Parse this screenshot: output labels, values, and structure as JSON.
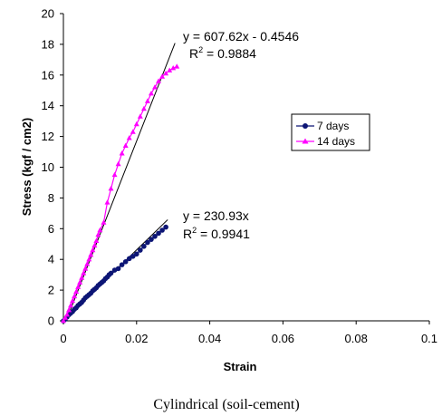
{
  "chart_data": {
    "type": "scatter",
    "xlabel": "Strain",
    "ylabel": "Stress (kgf / cm2)",
    "xlim": [
      0,
      0.1
    ],
    "ylim": [
      0,
      20
    ],
    "x_ticks": [
      "0",
      "0.02",
      "0.04",
      "0.06",
      "0.08",
      "0.1"
    ],
    "y_ticks": [
      "0",
      "2",
      "4",
      "6",
      "8",
      "10",
      "12",
      "14",
      "16",
      "18",
      "20"
    ],
    "grid": false,
    "legend_position": "right",
    "caption": "Cylindrical (soil-cement)",
    "series": [
      {
        "name": "7 days",
        "color": "#0c1575",
        "marker": "circle",
        "x": [
          0.0,
          0.0005,
          0.001,
          0.0015,
          0.002,
          0.0025,
          0.003,
          0.0035,
          0.004,
          0.0045,
          0.005,
          0.0055,
          0.006,
          0.0065,
          0.007,
          0.0075,
          0.008,
          0.0085,
          0.009,
          0.0095,
          0.01,
          0.0105,
          0.011,
          0.0115,
          0.012,
          0.0125,
          0.013,
          0.014,
          0.015,
          0.016,
          0.017,
          0.018,
          0.019,
          0.02,
          0.021,
          0.022,
          0.023,
          0.024,
          0.025,
          0.026,
          0.027,
          0.028
        ],
        "y": [
          0.0,
          0.1,
          0.25,
          0.4,
          0.5,
          0.6,
          0.75,
          0.85,
          1.0,
          1.1,
          1.2,
          1.35,
          1.5,
          1.6,
          1.7,
          1.8,
          1.95,
          2.05,
          2.15,
          2.3,
          2.4,
          2.5,
          2.6,
          2.75,
          2.85,
          3.0,
          3.1,
          3.3,
          3.4,
          3.65,
          3.85,
          4.05,
          4.2,
          4.35,
          4.6,
          4.85,
          5.1,
          5.3,
          5.5,
          5.7,
          5.9,
          6.1
        ]
      },
      {
        "name": "14 days",
        "color": "#ff00ff",
        "marker": "triangle",
        "x": [
          0.0,
          0.0005,
          0.001,
          0.0015,
          0.002,
          0.0025,
          0.003,
          0.0035,
          0.004,
          0.0045,
          0.005,
          0.0055,
          0.006,
          0.0065,
          0.007,
          0.0075,
          0.008,
          0.0085,
          0.009,
          0.0095,
          0.01,
          0.011,
          0.012,
          0.013,
          0.014,
          0.015,
          0.016,
          0.017,
          0.018,
          0.019,
          0.02,
          0.021,
          0.022,
          0.023,
          0.024,
          0.025,
          0.026,
          0.027,
          0.028,
          0.029,
          0.03,
          0.031
        ],
        "y": [
          0.0,
          0.2,
          0.4,
          0.7,
          1.0,
          1.3,
          1.6,
          1.9,
          2.2,
          2.5,
          2.8,
          3.1,
          3.4,
          3.7,
          4.0,
          4.3,
          4.6,
          4.9,
          5.2,
          5.6,
          5.9,
          6.4,
          7.7,
          8.6,
          9.5,
          10.2,
          10.9,
          11.4,
          11.9,
          12.3,
          12.8,
          13.3,
          13.8,
          14.3,
          14.8,
          15.2,
          15.6,
          15.9,
          16.1,
          16.3,
          16.45,
          16.55
        ]
      }
    ],
    "trendlines": [
      {
        "series": "14 days",
        "slope": 607.62,
        "intercept": -0.4546,
        "x_end": 0.0305,
        "equation": "y = 607.62x - 0.4546",
        "r2_label": "R",
        "r2_sup": "2",
        "r2_value": " = 0.9884"
      },
      {
        "series": "7 days",
        "slope": 230.93,
        "intercept": 0,
        "x_end": 0.0285,
        "equation": "y = 230.93x",
        "r2_label": "R",
        "r2_sup": "2",
        "r2_value": " = 0.9941"
      }
    ]
  }
}
